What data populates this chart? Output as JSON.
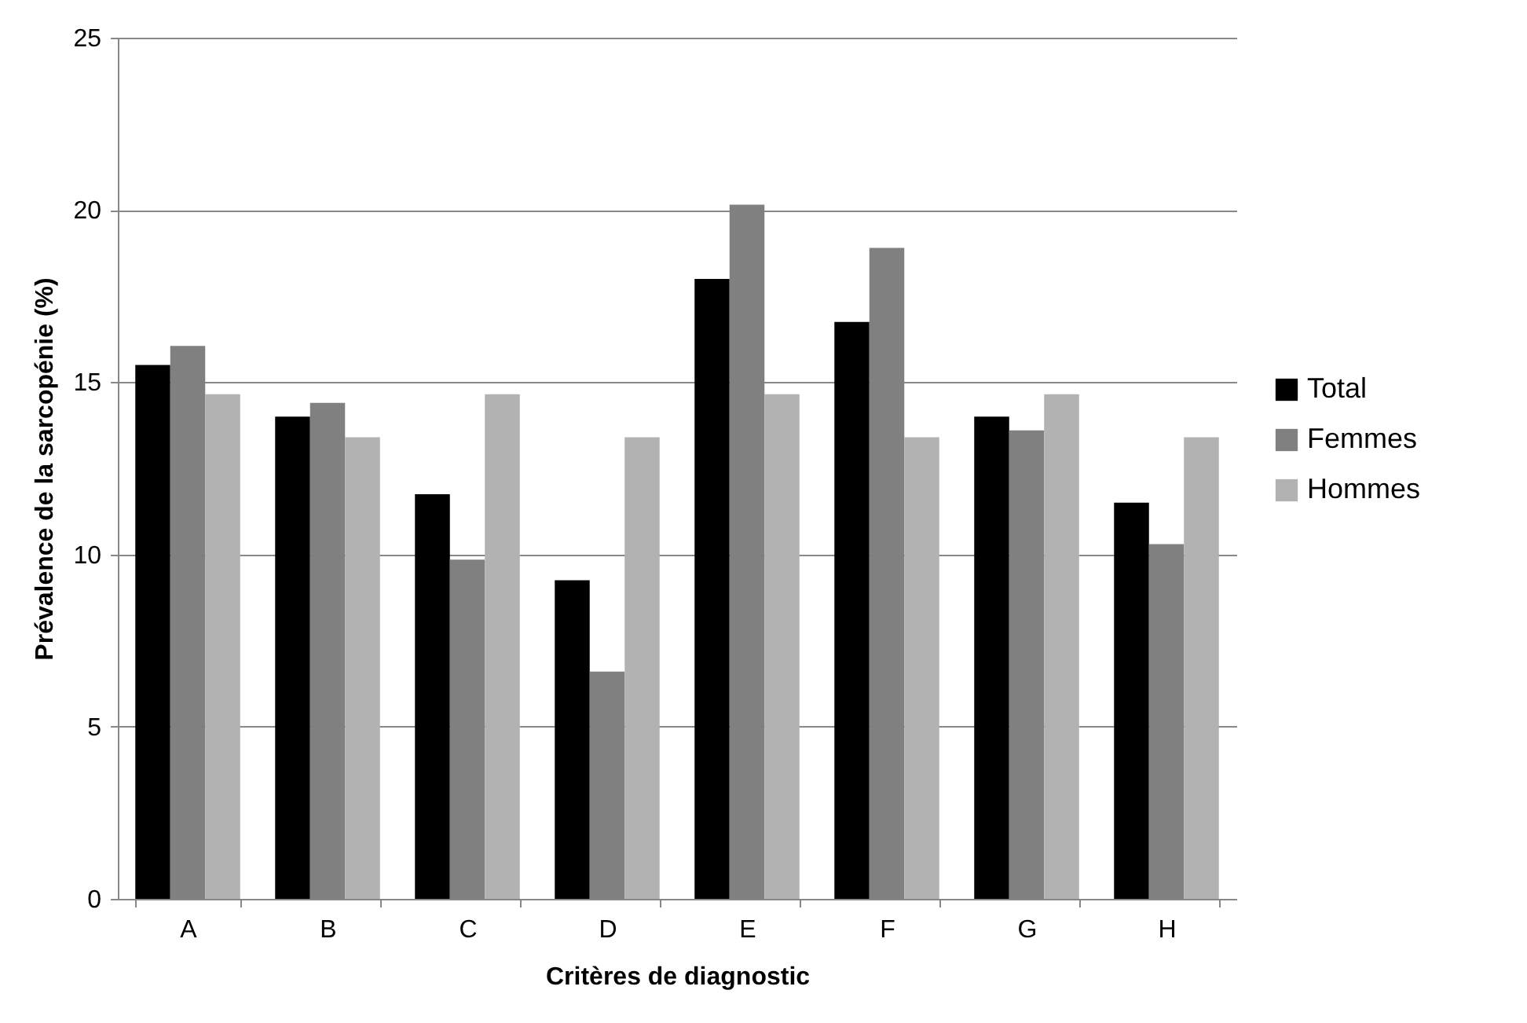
{
  "chart_data": {
    "type": "bar",
    "xlabel": "Critères de diagnostic",
    "ylabel": "Prévalence de la sarcopénie (%)",
    "categories": [
      "A",
      "B",
      "C",
      "D",
      "E",
      "F",
      "G",
      "H"
    ],
    "series": [
      {
        "name": "Total",
        "color": "#000000",
        "values": [
          15.5,
          14.0,
          11.75,
          9.25,
          18.0,
          16.75,
          14.0,
          11.5
        ]
      },
      {
        "name": "Femmes",
        "color": "#808080",
        "values": [
          16.05,
          14.4,
          9.85,
          6.6,
          20.15,
          18.9,
          13.6,
          10.3
        ]
      },
      {
        "name": "Hommes",
        "color": "#b2b2b2",
        "values": [
          14.65,
          13.4,
          14.65,
          13.4,
          14.65,
          13.4,
          14.65,
          13.4
        ]
      }
    ],
    "ylim": [
      0,
      25
    ],
    "yticks": [
      0,
      5,
      10,
      15,
      20,
      25
    ],
    "grid": "y",
    "legend": "right"
  }
}
